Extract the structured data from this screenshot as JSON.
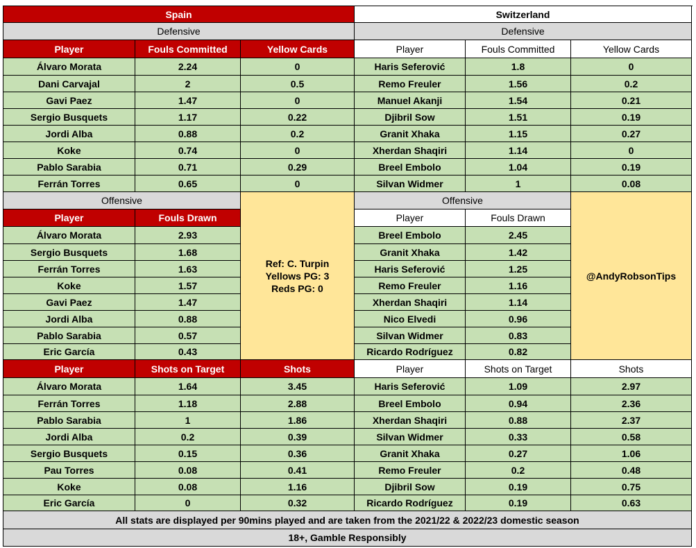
{
  "footer": {
    "note": "All stats are displayed per 90mins played and are taken from the 2021/22 & 2022/23 domestic season",
    "disclaimer": "18+, Gamble Responsibly"
  },
  "spain": {
    "team": "Spain",
    "defensive_title": "Defensive",
    "defensive_headers": [
      "Player",
      "Fouls Committed",
      "Yellow Cards"
    ],
    "defensive_rows": [
      [
        "Álvaro Morata",
        "2.24",
        "0"
      ],
      [
        "Dani Carvajal",
        "2",
        "0.5"
      ],
      [
        "Gavi Paez",
        "1.47",
        "0"
      ],
      [
        "Sergio Busquets",
        "1.17",
        "0.22"
      ],
      [
        "Jordi Alba",
        "0.88",
        "0.2"
      ],
      [
        "Koke",
        "0.74",
        "0"
      ],
      [
        "Pablo Sarabia",
        "0.71",
        "0.29"
      ],
      [
        "Ferrán Torres",
        "0.65",
        "0"
      ]
    ],
    "offensive_title": "Offensive",
    "offensive_headers": [
      "Player",
      "Fouls Drawn"
    ],
    "offensive_rows": [
      [
        "Álvaro Morata",
        "2.93"
      ],
      [
        "Sergio Busquets",
        "1.68"
      ],
      [
        "Ferrán Torres",
        "1.63"
      ],
      [
        "Koke",
        "1.57"
      ],
      [
        "Gavi Paez",
        "1.47"
      ],
      [
        "Jordi Alba",
        "0.88"
      ],
      [
        "Pablo Sarabia",
        "0.57"
      ],
      [
        "Eric García",
        "0.43"
      ]
    ],
    "shots_headers": [
      "Player",
      "Shots on Target",
      "Shots"
    ],
    "shots_rows": [
      [
        "Álvaro Morata",
        "1.64",
        "3.45"
      ],
      [
        "Ferrán Torres",
        "1.18",
        "2.88"
      ],
      [
        "Pablo Sarabia",
        "1",
        "1.86"
      ],
      [
        "Jordi Alba",
        "0.2",
        "0.39"
      ],
      [
        "Sergio Busquets",
        "0.15",
        "0.36"
      ],
      [
        "Pau Torres",
        "0.08",
        "0.41"
      ],
      [
        "Koke",
        "0.08",
        "1.16"
      ],
      [
        "Eric García",
        "0",
        "0.32"
      ]
    ]
  },
  "switzerland": {
    "team": "Switzerland",
    "defensive_title": "Defensive",
    "defensive_headers": [
      "Player",
      "Fouls Committed",
      "Yellow Cards"
    ],
    "defensive_rows": [
      [
        "Haris Seferović",
        "1.8",
        "0"
      ],
      [
        "Remo Freuler",
        "1.56",
        "0.2"
      ],
      [
        "Manuel Akanji",
        "1.54",
        "0.21"
      ],
      [
        "Djibril Sow",
        "1.51",
        "0.19"
      ],
      [
        "Granit Xhaka",
        "1.15",
        "0.27"
      ],
      [
        "Xherdan Shaqiri",
        "1.14",
        "0"
      ],
      [
        "Breel Embolo",
        "1.04",
        "0.19"
      ],
      [
        "Silvan Widmer",
        "1",
        "0.08"
      ]
    ],
    "offensive_title": "Offensive",
    "offensive_headers": [
      "Player",
      "Fouls Drawn"
    ],
    "offensive_rows": [
      [
        "Breel Embolo",
        "2.45"
      ],
      [
        "Granit Xhaka",
        "1.42"
      ],
      [
        "Haris Seferović",
        "1.25"
      ],
      [
        "Remo Freuler",
        "1.16"
      ],
      [
        "Xherdan Shaqiri",
        "1.14"
      ],
      [
        "Nico Elvedi",
        "0.96"
      ],
      [
        "Silvan Widmer",
        "0.83"
      ],
      [
        "Ricardo Rodríguez",
        "0.82"
      ]
    ],
    "shots_headers": [
      "Player",
      "Shots on Target",
      "Shots"
    ],
    "shots_rows": [
      [
        "Haris Seferović",
        "1.09",
        "2.97"
      ],
      [
        "Breel Embolo",
        "0.94",
        "2.36"
      ],
      [
        "Xherdan Shaqiri",
        "0.88",
        "2.37"
      ],
      [
        "Silvan Widmer",
        "0.33",
        "0.58"
      ],
      [
        "Granit Xhaka",
        "0.27",
        "1.06"
      ],
      [
        "Remo Freuler",
        "0.2",
        "0.48"
      ],
      [
        "Djibril Sow",
        "0.19",
        "0.75"
      ],
      [
        "Ricardo Rodríguez",
        "0.19",
        "0.63"
      ]
    ]
  },
  "referee": {
    "line1": "Ref: C. Turpin",
    "line2": "Yellows PG: 3",
    "line3": "Reds PG: 0"
  },
  "social": {
    "handle": "@AndyRobsonTips"
  },
  "colors": {
    "spain_header": "#c00000",
    "data_cell": "#c6e0b4",
    "section_bar": "#d9d9d9",
    "info_box": "#ffe699"
  }
}
